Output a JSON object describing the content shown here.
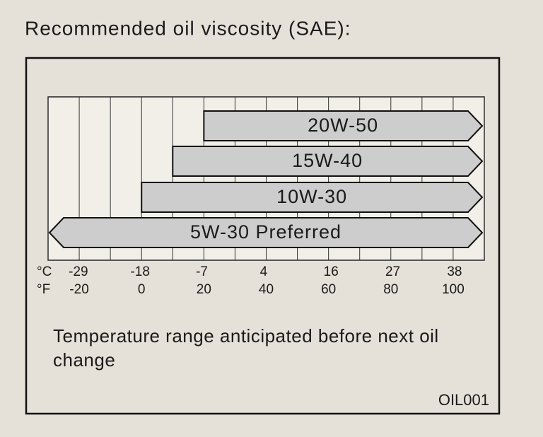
{
  "chart_data": {
    "type": "range",
    "title": "Recommended oil viscosity (SAE):",
    "xlabel": "°F",
    "x2label": "°C",
    "xlim": [
      -30,
      110
    ],
    "xticks": [
      -20,
      0,
      20,
      40,
      60,
      80,
      100
    ],
    "minor_xticks": [
      -30,
      -10,
      10,
      30,
      50,
      70,
      90,
      110
    ],
    "x2lim": [
      -34.4,
      43.3
    ],
    "x2ticks": [
      -29,
      -18,
      -7,
      4,
      16,
      27,
      38
    ],
    "color": "#cdcdcd",
    "series": [
      {
        "name": "20W-50",
        "low": 20,
        "high": null
      },
      {
        "name": "15W-40",
        "low": 10,
        "high": null
      },
      {
        "name": "10W-30",
        "low": 0,
        "high": null
      },
      {
        "name": "5W-30 Preferred",
        "low": null,
        "high": null
      }
    ],
    "note": "Temperature range anticipated before next oil change",
    "code": "OIL001"
  }
}
